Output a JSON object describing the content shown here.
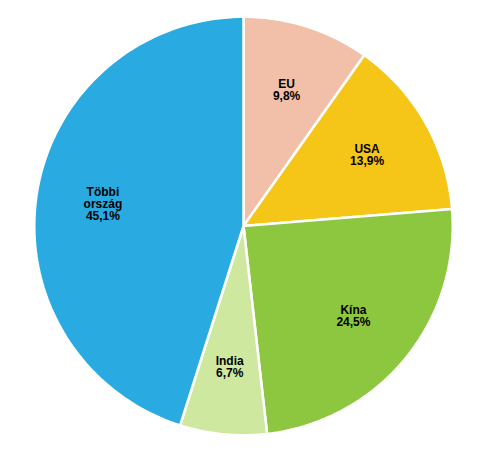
{
  "chart_data": {
    "type": "pie",
    "categories": [
      "EU",
      "USA",
      "Kína",
      "India",
      "Többi\nország"
    ],
    "values": [
      9.8,
      13.9,
      24.5,
      6.7,
      45.1
    ],
    "value_labels": [
      "9,8%",
      "13,9%",
      "24,5%",
      "6,7%",
      "45,1%"
    ],
    "colors": [
      "#f2c0a8",
      "#f5c518",
      "#8dc63f",
      "#cfe8a0",
      "#29abe2"
    ],
    "data_labels": true
  }
}
